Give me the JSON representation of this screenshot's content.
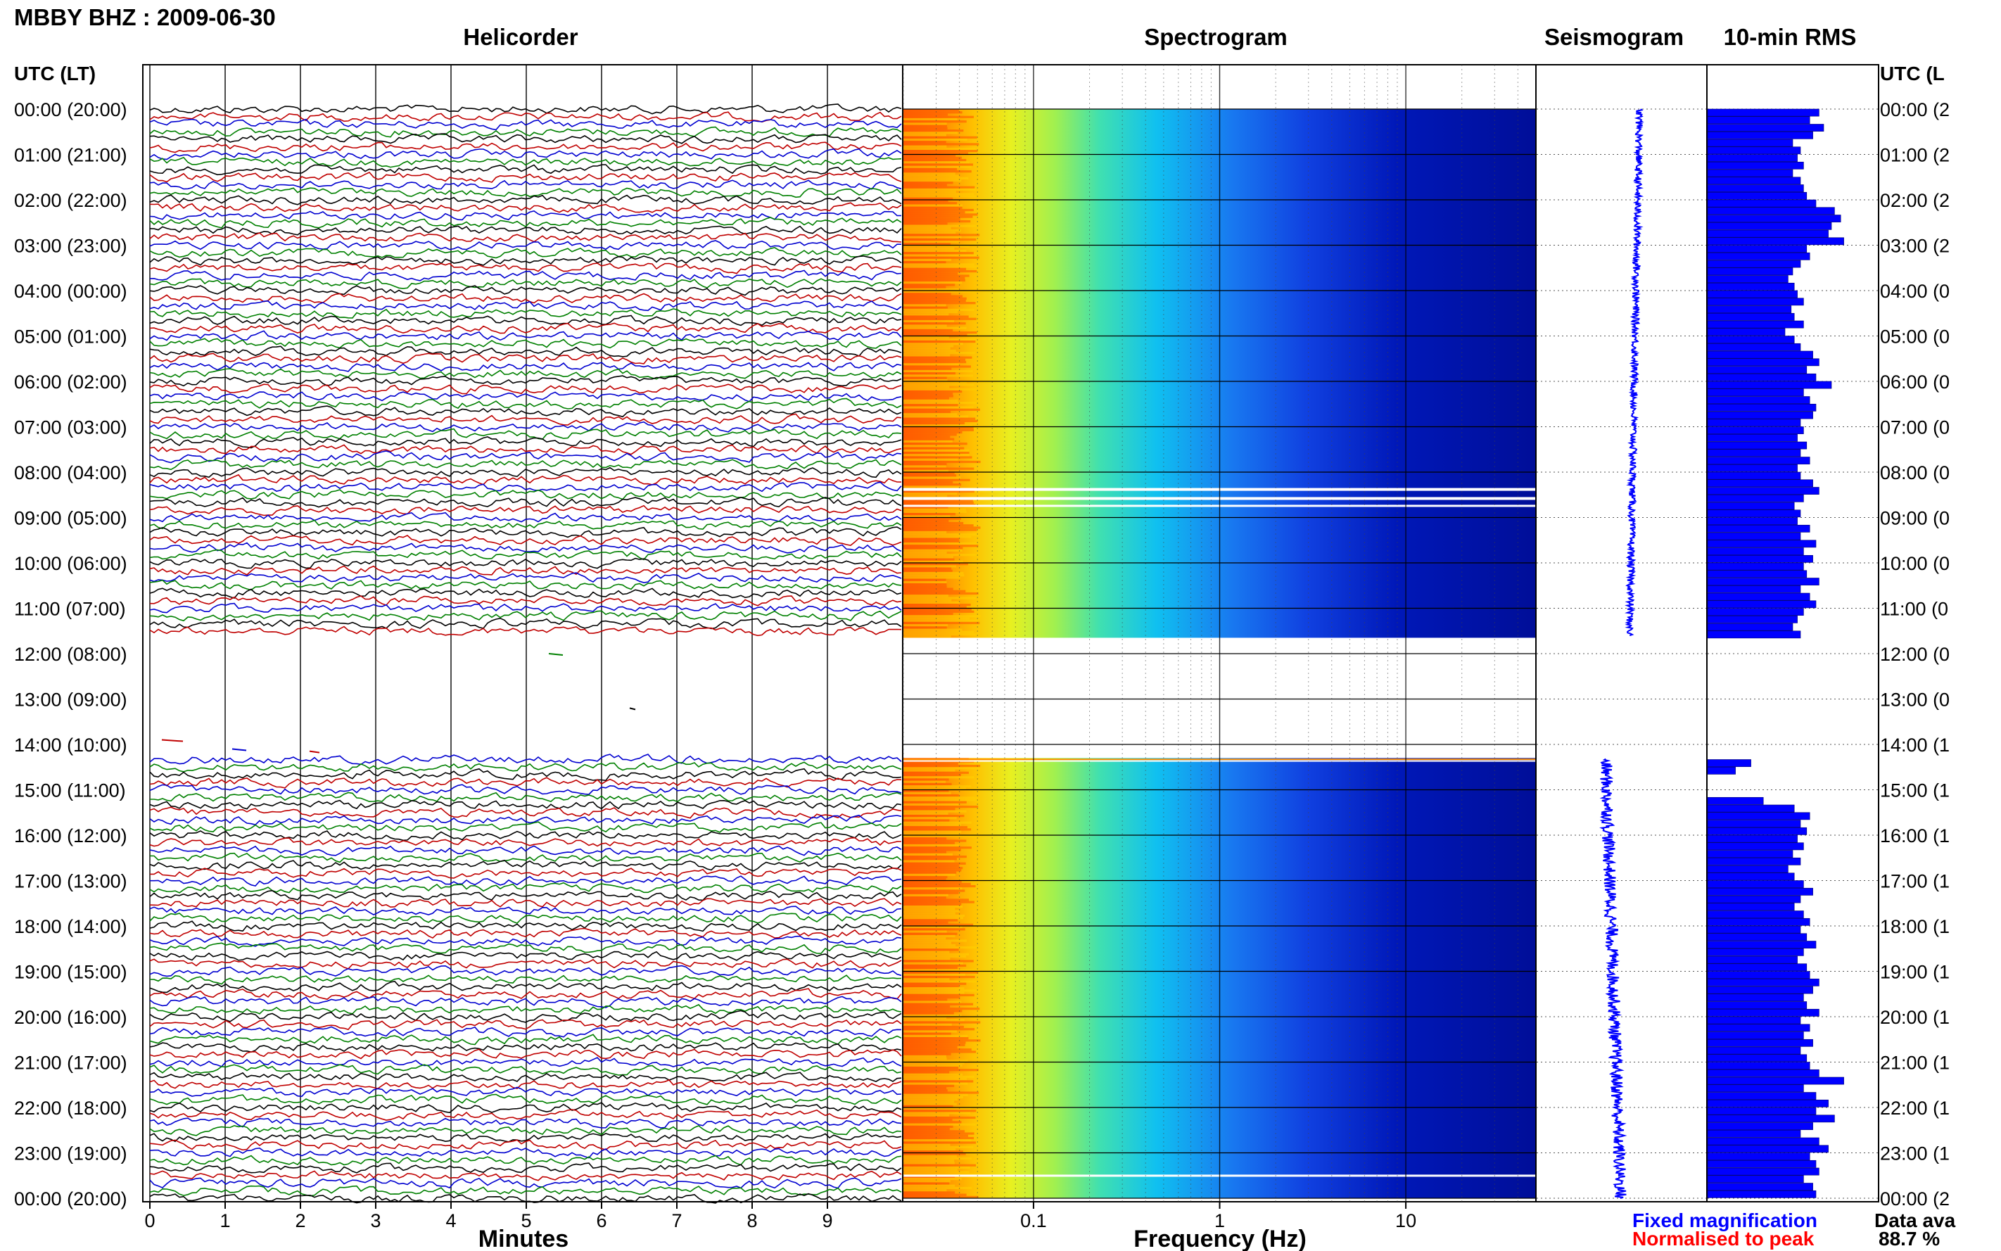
{
  "header": {
    "station_title": "MBBY BHZ : 2009-06-30",
    "helicorder_title": "Helicorder",
    "spectrogram_title": "Spectrogram",
    "seismogram_title": "Seismogram",
    "rms_title": "10-min RMS",
    "time_axis_label_left": "UTC (LT)",
    "time_axis_label_right": "UTC (L"
  },
  "footer": {
    "minutes_label": "Minutes",
    "frequency_label": "Frequency (Hz)",
    "legend_fixed": "Fixed magnification",
    "legend_normalised": "Normalised to peak",
    "data_availability_label": "Data ava",
    "data_availability_value": "88.7 %"
  },
  "colors": {
    "trace_colors": [
      "#000000",
      "#c00000",
      "#0000d0",
      "#008000"
    ],
    "legend_fixed": "#0000ff",
    "legend_normalised": "#ff0000",
    "rms_bar": "#0000ff"
  },
  "chart_data": [
    {
      "type": "line",
      "panel": "helicorder",
      "x_label": "Minutes",
      "x_ticks": [
        "0",
        "1",
        "2",
        "3",
        "4",
        "5",
        "6",
        "7",
        "8",
        "9"
      ],
      "xlim": [
        0,
        10
      ],
      "y_tick_labels": [
        "00:00 (20:00)",
        "01:00 (21:00)",
        "02:00 (22:00)",
        "03:00 (23:00)",
        "04:00 (00:00)",
        "05:00 (01:00)",
        "06:00 (02:00)",
        "07:00 (03:00)",
        "08:00 (04:00)",
        "09:00 (05:00)",
        "10:00 (06:00)",
        "11:00 (07:00)",
        "12:00 (08:00)",
        "13:00 (09:00)",
        "14:00 (10:00)",
        "15:00 (11:00)",
        "16:00 (12:00)",
        "17:00 (13:00)",
        "18:00 (14:00)",
        "19:00 (15:00)",
        "20:00 (16:00)",
        "21:00 (17:00)",
        "22:00 (18:00)",
        "23:00 (19:00)",
        "00:00 (20:00)"
      ],
      "right_tick_labels": [
        "00:00 (2",
        "01:00 (2",
        "02:00 (2",
        "03:00 (2",
        "04:00 (0",
        "05:00 (0",
        "06:00 (0",
        "07:00 (0",
        "08:00 (0",
        "09:00 (0",
        "10:00 (0",
        "11:00 (0",
        "12:00 (0",
        "13:00 (0",
        "14:00 (1",
        "15:00 (1",
        "16:00 (1",
        "17:00 (1",
        "18:00 (1",
        "19:00 (1",
        "20:00 (1",
        "21:00 (1",
        "22:00 (1",
        "23:00 (1",
        "00:00 (2"
      ],
      "traces_per_hour": 6,
      "data_gaps_hours": [
        [
          11.6,
          14.3
        ]
      ]
    },
    {
      "type": "heatmap",
      "panel": "spectrogram",
      "x_label": "Frequency (Hz)",
      "x_scale": "log",
      "x_ticks": [
        "0.1",
        "1",
        "10"
      ],
      "xlim": [
        0.02,
        50
      ],
      "data_gaps_hours": [
        [
          11.65,
          14.3
        ],
        [
          8.3,
          8.7
        ]
      ]
    },
    {
      "type": "line",
      "panel": "seismogram",
      "y_range_hours": [
        0,
        24
      ],
      "data_gaps_hours": [
        [
          11.6,
          14.3
        ]
      ]
    },
    {
      "type": "bar",
      "panel": "10-min RMS",
      "orientation": "horizontal",
      "bin_minutes": 10,
      "values": [
        0.72,
        0.66,
        0.75,
        0.68,
        0.55,
        0.6,
        0.58,
        0.62,
        0.55,
        0.6,
        0.62,
        0.64,
        0.7,
        0.82,
        0.86,
        0.8,
        0.78,
        0.88,
        0.64,
        0.66,
        0.6,
        0.55,
        0.52,
        0.56,
        0.58,
        0.62,
        0.54,
        0.56,
        0.62,
        0.5,
        0.56,
        0.6,
        0.68,
        0.72,
        0.64,
        0.7,
        0.8,
        0.62,
        0.66,
        0.7,
        0.68,
        0.6,
        0.62,
        0.58,
        0.64,
        0.6,
        0.66,
        0.58,
        0.6,
        0.68,
        0.72,
        0.62,
        0.56,
        0.6,
        0.58,
        0.66,
        0.6,
        0.7,
        0.62,
        0.68,
        0.62,
        0.64,
        0.72,
        0.6,
        0.66,
        0.7,
        0.62,
        0.58,
        0.55,
        0.6,
        0.0,
        0.0,
        0.0,
        0.0,
        0.0,
        0.0,
        0.0,
        0.0,
        0.0,
        0.0,
        0.0,
        0.0,
        0.0,
        0.0,
        0.0,
        0.0,
        0.28,
        0.18,
        0.0,
        0.0,
        0.0,
        0.36,
        0.56,
        0.66,
        0.6,
        0.64,
        0.58,
        0.62,
        0.55,
        0.6,
        0.52,
        0.56,
        0.62,
        0.68,
        0.6,
        0.56,
        0.62,
        0.66,
        0.6,
        0.64,
        0.7,
        0.62,
        0.58,
        0.64,
        0.66,
        0.72,
        0.68,
        0.62,
        0.64,
        0.72,
        0.6,
        0.66,
        0.62,
        0.68,
        0.6,
        0.64,
        0.66,
        0.72,
        0.88,
        0.62,
        0.7,
        0.78,
        0.7,
        0.82,
        0.68,
        0.6,
        0.72,
        0.78,
        0.66,
        0.7,
        0.72,
        0.62,
        0.68,
        0.7
      ],
      "data_gaps_hours": [
        [
          11.7,
          14.3
        ]
      ]
    }
  ]
}
